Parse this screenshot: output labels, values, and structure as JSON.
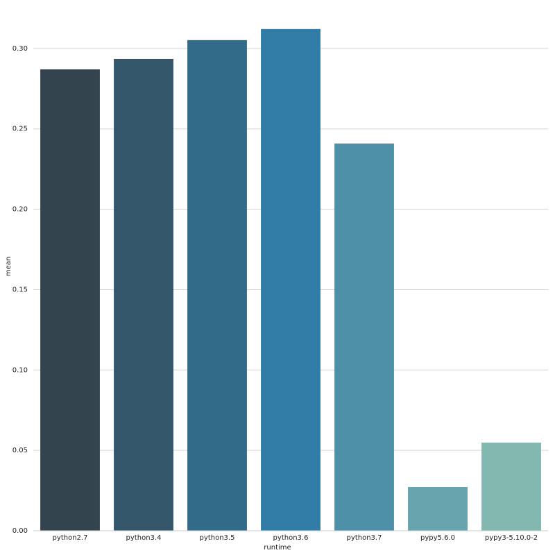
{
  "chart_data": {
    "type": "bar",
    "x_label": "runtime",
    "y_label": "mean",
    "categories": [
      "python2.7",
      "python3.4",
      "python3.5",
      "python3.6",
      "python3.7",
      "pypy5.6.0",
      "pypy3-5.10.0-2"
    ],
    "values": [
      0.287,
      0.2935,
      0.3052,
      0.3121,
      0.2409,
      0.0272,
      0.0548
    ],
    "colors": [
      "#34444f",
      "#33566b",
      "#326a8a",
      "#327ca8",
      "#4d90a8",
      "#67a4ad",
      "#83b8b0"
    ],
    "ylim": [
      0,
      0.3129
    ],
    "yticks": [
      {
        "value": 0,
        "label": "0.00"
      },
      0.05,
      {
        "value": 0.1,
        "label": "0.10"
      },
      0.15,
      {
        "value": 0.2,
        "label": "0.20"
      },
      0.25,
      {
        "value": 0.3,
        "label": "0.30"
      }
    ],
    "grid": true
  }
}
